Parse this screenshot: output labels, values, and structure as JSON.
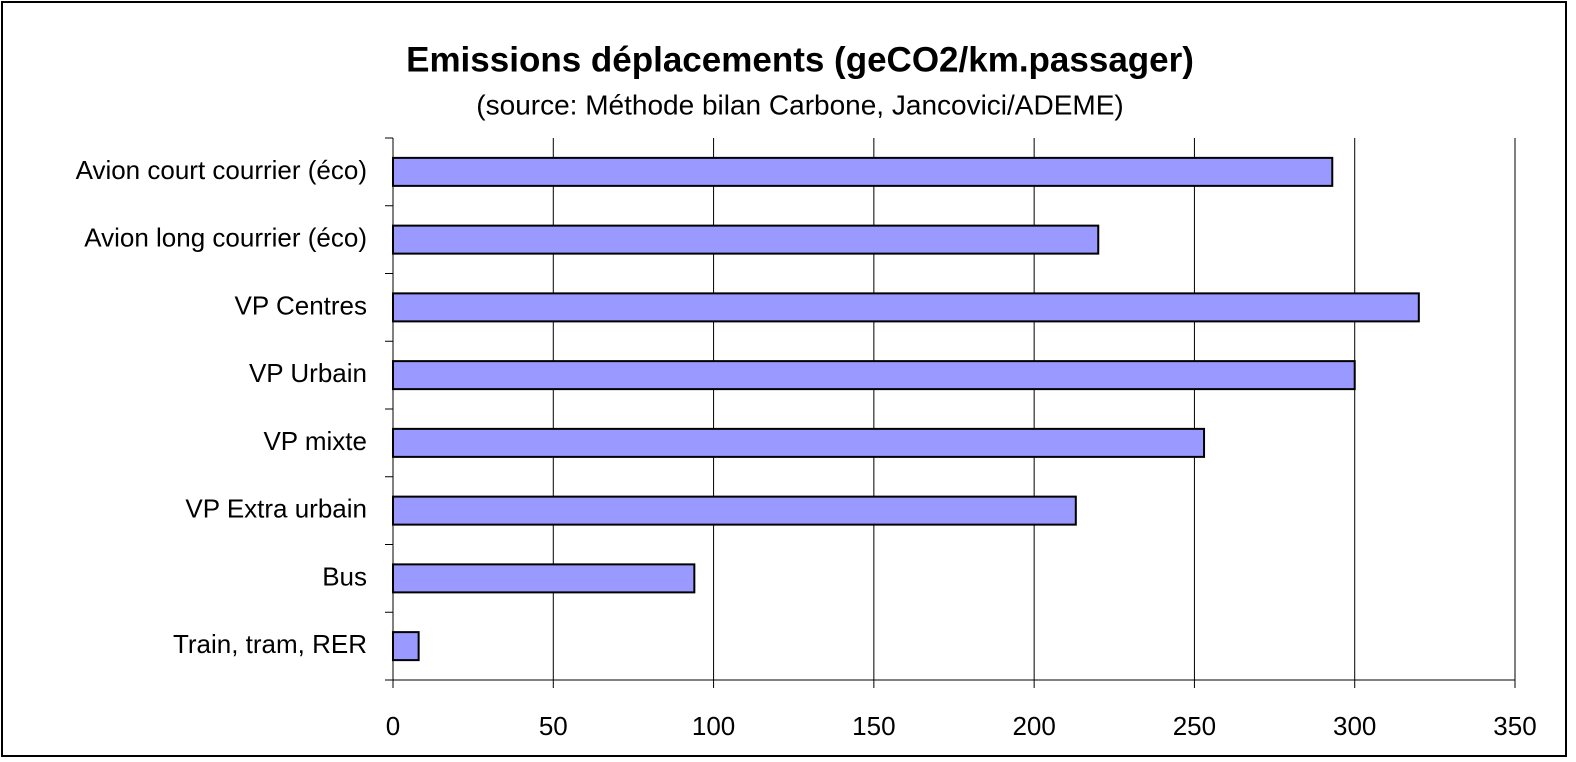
{
  "chart_data": {
    "type": "bar",
    "orientation": "horizontal",
    "title": "Emissions déplacements (geCO2/km.passager)",
    "subtitle": "(source: Méthode bilan Carbone, Jancovici/ADEME)",
    "categories": [
      "Avion court courrier (éco)",
      "Avion long courrier (éco)",
      "VP Centres",
      "VP Urbain",
      "VP mixte",
      "VP Extra urbain",
      "Bus",
      "Train, tram, RER"
    ],
    "values": [
      293,
      220,
      320,
      300,
      253,
      213,
      94,
      8
    ],
    "color": "#9999ff",
    "xlim": [
      0,
      350
    ],
    "xticks": [
      0,
      50,
      100,
      150,
      200,
      250,
      300,
      350
    ],
    "grid": true
  }
}
